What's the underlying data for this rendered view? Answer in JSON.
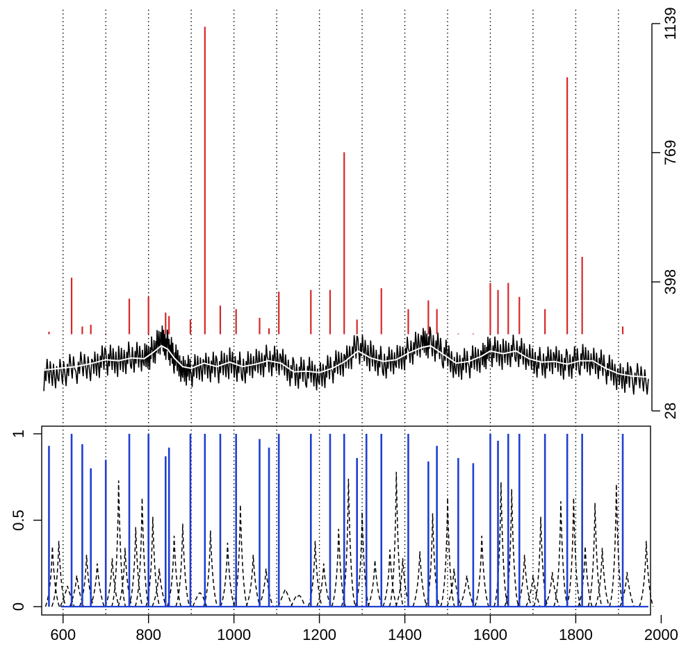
{
  "chart_data": [
    {
      "type": "line",
      "title": "",
      "xlabel": "",
      "ylabel": "",
      "xlim": [
        550,
        1975
      ],
      "ylim": [
        28,
        1139
      ],
      "y_axis_side": "right",
      "y_tick_values": [
        28,
        398,
        769,
        1139
      ],
      "y_tick_labels": [
        "28",
        "398",
        "769",
        "1139"
      ],
      "vertical_reference_lines": [
        600,
        700,
        800,
        900,
        1000,
        1100,
        1200,
        1300,
        1400,
        1500,
        1600,
        1700,
        1800,
        1900
      ],
      "colors": {
        "baseline": "#000000",
        "spikes": "#d62728",
        "smooth": "#ffffff"
      },
      "series": [
        {
          "style": "baseline",
          "color": "#000000",
          "x": [
            555,
            590,
            630,
            670,
            700,
            730,
            760,
            790,
            810,
            830,
            845,
            860,
            880,
            900,
            930,
            960,
            990,
            1020,
            1050,
            1080,
            1110,
            1140,
            1170,
            1200,
            1230,
            1260,
            1290,
            1320,
            1350,
            1380,
            1410,
            1440,
            1460,
            1490,
            1520,
            1550,
            1580,
            1600,
            1630,
            1660,
            1690,
            1720,
            1750,
            1780,
            1810,
            1840,
            1870,
            1900,
            1930,
            1970
          ],
          "y": [
            130,
            140,
            150,
            160,
            175,
            170,
            185,
            175,
            200,
            230,
            215,
            180,
            150,
            140,
            160,
            150,
            165,
            150,
            160,
            175,
            165,
            135,
            140,
            130,
            150,
            175,
            210,
            185,
            165,
            170,
            200,
            220,
            225,
            195,
            160,
            165,
            185,
            200,
            190,
            205,
            175,
            165,
            170,
            160,
            175,
            175,
            150,
            130,
            120,
            120
          ]
        },
        {
          "style": "smooth",
          "color": "#ffffff",
          "x": [
            555,
            590,
            630,
            670,
            700,
            730,
            760,
            790,
            810,
            830,
            845,
            860,
            880,
            900,
            930,
            960,
            990,
            1020,
            1050,
            1080,
            1110,
            1140,
            1170,
            1200,
            1230,
            1260,
            1290,
            1320,
            1350,
            1380,
            1410,
            1440,
            1460,
            1490,
            1520,
            1550,
            1580,
            1600,
            1630,
            1660,
            1690,
            1720,
            1750,
            1780,
            1810,
            1840,
            1870,
            1900,
            1930,
            1970
          ],
          "y": [
            145,
            150,
            155,
            165,
            175,
            172,
            180,
            178,
            195,
            215,
            205,
            180,
            155,
            150,
            165,
            155,
            168,
            155,
            162,
            172,
            165,
            140,
            142,
            138,
            150,
            170,
            200,
            180,
            170,
            175,
            195,
            210,
            215,
            190,
            165,
            170,
            185,
            200,
            192,
            200,
            178,
            168,
            170,
            162,
            172,
            172,
            150,
            135,
            128,
            125
          ]
        },
        {
          "style": "spikes",
          "color": "#d62728",
          "x": [
            567,
            620,
            645,
            665,
            700,
            755,
            800,
            840,
            848,
            898,
            932,
            968,
            1005,
            1060,
            1082,
            1105,
            1180,
            1225,
            1258,
            1288,
            1345,
            1408,
            1455,
            1475,
            1525,
            1560,
            1600,
            1618,
            1642,
            1668,
            1728,
            1780,
            1815,
            1910
          ],
          "y": [
            255,
            410,
            270,
            275,
            250,
            350,
            355,
            310,
            300,
            290,
            1130,
            330,
            320,
            295,
            265,
            370,
            375,
            375,
            770,
            290,
            380,
            320,
            345,
            320,
            250,
            250,
            395,
            375,
            395,
            355,
            320,
            985,
            470,
            270
          ]
        }
      ]
    },
    {
      "type": "line",
      "title": "",
      "xlabel": "",
      "ylabel": "",
      "xlim": [
        550,
        1975
      ],
      "ylim": [
        0,
        1
      ],
      "y_axis_side": "left",
      "y_tick_values": [
        0,
        0.5,
        1
      ],
      "y_tick_labels": [
        "0",
        "0.5",
        "1"
      ],
      "x_tick_values": [
        600,
        800,
        1000,
        1200,
        1400,
        1600,
        1800,
        2000
      ],
      "x_tick_labels": [
        "600",
        "800",
        "1000",
        "1200",
        "1400",
        "1600",
        "1800",
        "2000"
      ],
      "colors": {
        "solid": "#1f3fd1",
        "dashed": "#000000"
      },
      "series": [
        {
          "style": "dashed",
          "color": "#000000",
          "x": [
            575,
            590,
            610,
            632,
            655,
            680,
            715,
            730,
            745,
            770,
            785,
            810,
            825,
            860,
            880,
            920,
            945,
            985,
            1015,
            1045,
            1075,
            1120,
            1150,
            1190,
            1210,
            1245,
            1268,
            1300,
            1330,
            1365,
            1380,
            1395,
            1435,
            1465,
            1500,
            1515,
            1545,
            1580,
            1625,
            1650,
            1680,
            1700,
            1718,
            1745,
            1765,
            1795,
            1822,
            1845,
            1862,
            1895,
            1920,
            1965
          ],
          "y": [
            0.35,
            0.38,
            0.12,
            0.18,
            0.3,
            0.25,
            0.28,
            0.73,
            0.34,
            0.46,
            0.63,
            0.52,
            0.22,
            0.41,
            0.48,
            0.08,
            0.44,
            0.37,
            0.59,
            0.3,
            0.22,
            0.1,
            0.06,
            0.38,
            0.25,
            0.45,
            0.74,
            0.55,
            0.27,
            0.33,
            0.78,
            0.28,
            0.32,
            0.54,
            0.63,
            0.22,
            0.18,
            0.41,
            0.72,
            0.68,
            0.3,
            0.18,
            0.52,
            0.2,
            0.61,
            0.63,
            0.35,
            0.6,
            0.34,
            0.71,
            0.2,
            0.38
          ]
        },
        {
          "style": "solid",
          "color": "#1f3fd1",
          "x": [
            567,
            620,
            645,
            665,
            700,
            755,
            800,
            840,
            848,
            898,
            932,
            968,
            1005,
            1060,
            1082,
            1105,
            1180,
            1225,
            1258,
            1288,
            1310,
            1345,
            1408,
            1455,
            1475,
            1525,
            1560,
            1600,
            1618,
            1642,
            1668,
            1728,
            1780,
            1815,
            1910
          ],
          "y": [
            0.93,
            1.0,
            0.94,
            0.8,
            0.85,
            1.0,
            1.0,
            0.87,
            0.92,
            1.0,
            1.0,
            1.0,
            1.0,
            0.97,
            0.92,
            1.0,
            1.0,
            1.0,
            1.0,
            0.86,
            1.0,
            1.0,
            1.0,
            0.84,
            0.93,
            0.86,
            0.83,
            1.0,
            0.96,
            1.0,
            1.0,
            1.0,
            1.0,
            1.0,
            1.0
          ]
        }
      ]
    }
  ]
}
